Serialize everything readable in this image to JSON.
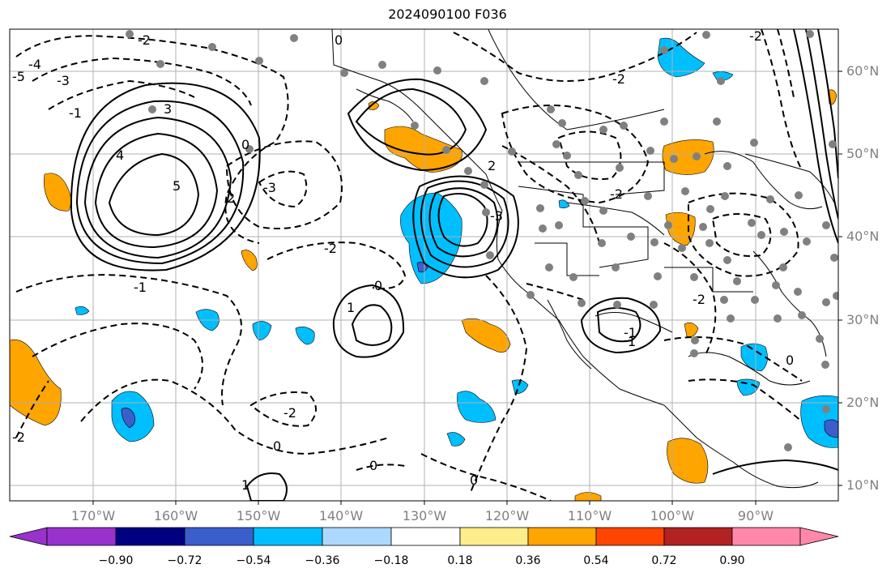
{
  "title": "2024090100 F036",
  "map": {
    "lat_ticks": [
      "60°N",
      "50°N",
      "40°N",
      "30°N",
      "20°N",
      "10°N"
    ],
    "lon_ticks": [
      "170°W",
      "160°W",
      "150°W",
      "140°W",
      "130°W",
      "120°W",
      "110°W",
      "100°W",
      "90°W"
    ],
    "contour_labels": [
      "-2",
      "0",
      "-1",
      "-3",
      "-4",
      "-5",
      "2",
      "3",
      "4",
      "5",
      "-2",
      "-3",
      "-2",
      "-1",
      "1",
      "0",
      "-2",
      "2",
      "-1",
      "-2",
      "-3",
      "0",
      "1",
      "-2",
      "0",
      "0",
      "-2",
      "0",
      "1",
      "0",
      "-2"
    ],
    "shading_colors": {
      "neg_strong": "#3a5fcd",
      "neg_mid": "#00bfff",
      "pos_mid": "#ffa500",
      "very_neg": "#000080"
    }
  },
  "colorbar": {
    "ticks": [
      "−0.90",
      "−0.72",
      "−0.54",
      "−0.36",
      "−0.18",
      "0.18",
      "0.36",
      "0.54",
      "0.72",
      "0.90"
    ],
    "colors": [
      "#9932cc",
      "#000080",
      "#3a5fcd",
      "#00bfff",
      "#add8ff",
      "#ffffff",
      "#ffec8b",
      "#ffa500",
      "#ff4500",
      "#b22222",
      "#ff88aa"
    ]
  }
}
